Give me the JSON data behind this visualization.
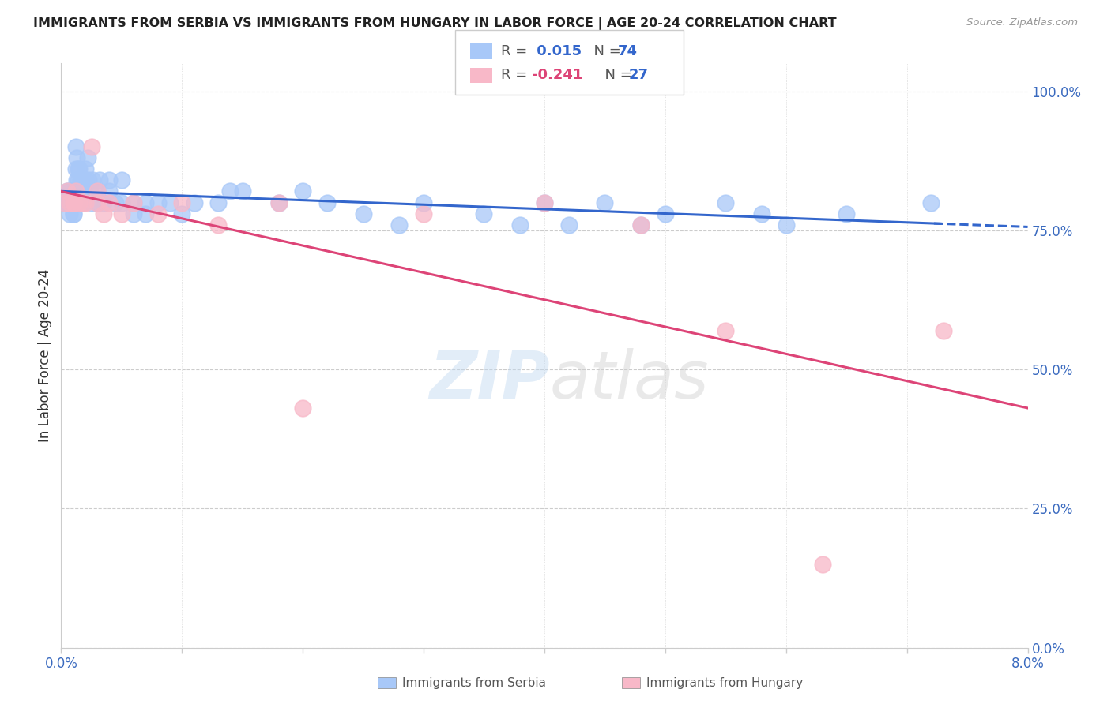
{
  "title": "IMMIGRANTS FROM SERBIA VS IMMIGRANTS FROM HUNGARY IN LABOR FORCE | AGE 20-24 CORRELATION CHART",
  "source": "Source: ZipAtlas.com",
  "ylabel": "In Labor Force | Age 20-24",
  "yticks": [
    "0.0%",
    "25.0%",
    "50.0%",
    "75.0%",
    "100.0%"
  ],
  "ytick_vals": [
    0.0,
    0.25,
    0.5,
    0.75,
    1.0
  ],
  "xlim": [
    0.0,
    0.08
  ],
  "ylim": [
    0.0,
    1.05
  ],
  "serbia_R": 0.015,
  "serbia_N": 74,
  "hungary_R": -0.241,
  "hungary_N": 27,
  "serbia_color": "#a8c8f8",
  "hungary_color": "#f8b8c8",
  "serbia_line_color": "#3366cc",
  "hungary_line_color": "#dd4477",
  "legend_serbia_label": "Immigrants from Serbia",
  "legend_hungary_label": "Immigrants from Hungary",
  "serbia_x": [
    0.0003,
    0.0004,
    0.0005,
    0.0006,
    0.0006,
    0.0007,
    0.0008,
    0.0008,
    0.0009,
    0.001,
    0.001,
    0.001,
    0.001,
    0.001,
    0.001,
    0.001,
    0.0012,
    0.0012,
    0.0013,
    0.0013,
    0.0014,
    0.0014,
    0.0015,
    0.0015,
    0.0016,
    0.0016,
    0.0017,
    0.0018,
    0.0018,
    0.002,
    0.002,
    0.0022,
    0.0023,
    0.0024,
    0.0025,
    0.0026,
    0.003,
    0.003,
    0.0032,
    0.0035,
    0.004,
    0.004,
    0.0045,
    0.005,
    0.005,
    0.006,
    0.006,
    0.007,
    0.007,
    0.008,
    0.009,
    0.01,
    0.011,
    0.013,
    0.014,
    0.015,
    0.018,
    0.02,
    0.022,
    0.025,
    0.028,
    0.03,
    0.035,
    0.038,
    0.04,
    0.042,
    0.045,
    0.048,
    0.05,
    0.055,
    0.058,
    0.06,
    0.065,
    0.072
  ],
  "serbia_y": [
    0.8,
    0.8,
    0.82,
    0.8,
    0.82,
    0.78,
    0.8,
    0.82,
    0.8,
    0.82,
    0.8,
    0.8,
    0.78,
    0.8,
    0.8,
    0.78,
    0.86,
    0.9,
    0.84,
    0.88,
    0.86,
    0.84,
    0.86,
    0.82,
    0.84,
    0.82,
    0.84,
    0.8,
    0.82,
    0.86,
    0.84,
    0.88,
    0.84,
    0.82,
    0.8,
    0.84,
    0.82,
    0.8,
    0.84,
    0.8,
    0.84,
    0.82,
    0.8,
    0.84,
    0.8,
    0.78,
    0.8,
    0.8,
    0.78,
    0.8,
    0.8,
    0.78,
    0.8,
    0.8,
    0.82,
    0.82,
    0.8,
    0.82,
    0.8,
    0.78,
    0.76,
    0.8,
    0.78,
    0.76,
    0.8,
    0.76,
    0.8,
    0.76,
    0.78,
    0.8,
    0.78,
    0.76,
    0.78,
    0.8
  ],
  "hungary_x": [
    0.0003,
    0.0005,
    0.0007,
    0.001,
    0.001,
    0.0012,
    0.0015,
    0.0018,
    0.002,
    0.0025,
    0.003,
    0.003,
    0.0035,
    0.004,
    0.005,
    0.006,
    0.008,
    0.01,
    0.013,
    0.018,
    0.02,
    0.03,
    0.04,
    0.048,
    0.055,
    0.063,
    0.073
  ],
  "hungary_y": [
    0.8,
    0.82,
    0.8,
    0.8,
    0.8,
    0.82,
    0.8,
    0.8,
    0.8,
    0.9,
    0.82,
    0.8,
    0.78,
    0.8,
    0.78,
    0.8,
    0.78,
    0.8,
    0.76,
    0.8,
    0.43,
    0.78,
    0.8,
    0.76,
    0.57,
    0.15,
    0.57
  ],
  "background_color": "#ffffff",
  "grid_color": "#cccccc"
}
